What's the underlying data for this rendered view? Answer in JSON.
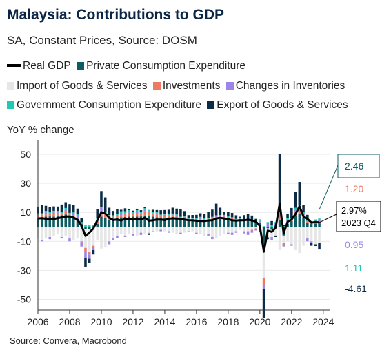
{
  "title": "Malaysia: Contributions to GDP",
  "subtitle": "SA, Constant Prices, Source: DOSM",
  "legend": [
    {
      "label": "Real GDP",
      "color": "#000000",
      "kind": "line"
    },
    {
      "label": "Private Consumption Expenditure",
      "color": "#0e5c63",
      "kind": "box"
    },
    {
      "label": "Import of Goods & Services",
      "color": "#e6e6e6",
      "kind": "box"
    },
    {
      "label": "Investments",
      "color": "#ef7a62",
      "kind": "box"
    },
    {
      "label": "Changes in Inventories",
      "color": "#9b86e8",
      "kind": "box"
    },
    {
      "label": "Government Consumption Expenditure",
      "color": "#1fc9b4",
      "kind": "box"
    },
    {
      "label": "Export of Goods & Services",
      "color": "#0c2c46",
      "kind": "box"
    }
  ],
  "ylabel": "YoY % change",
  "source": "Source: Convera, Macrobond",
  "callouts": {
    "pce": "2.46",
    "inv": "1.20",
    "gdp_value": "2.97%",
    "gdp_period": "2023 Q4",
    "inventories": "0.95",
    "gov": "1.11",
    "export": "-4.61"
  },
  "chart_data": {
    "type": "bar",
    "stacked": true,
    "ylim": [
      -55,
      60
    ],
    "xlim": [
      2006,
      2024.4
    ],
    "yticks": [
      -50,
      -30,
      -10,
      10,
      30,
      50
    ],
    "xticks": [
      "2006",
      "2008",
      "2010",
      "2012",
      "2014",
      "2016",
      "2018",
      "2020",
      "2022",
      "2024"
    ],
    "x_start": 2006.0,
    "x_step": 0.25,
    "gdp": [
      5.8,
      5.9,
      5.6,
      5.6,
      5.3,
      6.0,
      6.5,
      7.1,
      7.2,
      6.4,
      4.9,
      0.8,
      -6.2,
      -3.9,
      -1.0,
      4.6,
      10.1,
      9.2,
      6.1,
      4.8,
      5.0,
      4.4,
      5.6,
      5.2,
      5.0,
      5.4,
      5.0,
      6.3,
      4.2,
      4.5,
      5.0,
      5.0,
      4.7,
      5.5,
      5.9,
      5.7,
      5.6,
      5.0,
      4.6,
      4.5,
      4.2,
      4.1,
      4.0,
      4.4,
      4.6,
      5.8,
      6.2,
      5.8,
      5.4,
      4.5,
      4.3,
      4.6,
      4.5,
      4.9,
      4.4,
      3.6,
      0.7,
      -17.1,
      -2.6,
      -3.4,
      -0.5,
      16.1,
      -4.5,
      3.6,
      5.0,
      8.9,
      14.2,
      7.1,
      5.6,
      2.9,
      3.3,
      3.0
    ],
    "series": [
      {
        "name": "Private Consumption Expenditure",
        "values": [
          6.0,
          6.5,
          7.0,
          7.2,
          7.0,
          7.5,
          8.0,
          8.5,
          7.5,
          6.5,
          4.5,
          2.0,
          -1.5,
          -1.5,
          0.5,
          2.0,
          7.0,
          6.0,
          5.0,
          5.0,
          6.0,
          6.5,
          6.8,
          7.0,
          7.0,
          7.0,
          7.2,
          7.5,
          7.5,
          7.0,
          6.5,
          6.0,
          6.0,
          6.5,
          6.5,
          6.0,
          5.5,
          5.0,
          4.5,
          4.0,
          4.0,
          4.0,
          4.0,
          4.5,
          4.8,
          5.0,
          5.5,
          5.5,
          5.5,
          5.0,
          4.5,
          4.5,
          4.5,
          4.5,
          4.0,
          3.5,
          3.0,
          -15.0,
          -1.0,
          -2.0,
          1.0,
          5.0,
          -6.0,
          2.0,
          4.0,
          8.0,
          9.0,
          6.0,
          2.5,
          2.0,
          2.3,
          2.46
        ]
      },
      {
        "name": "Import of Goods & Services",
        "values": [
          -8.0,
          -9.0,
          -8.0,
          -7.0,
          -6.0,
          -5.0,
          -7.0,
          -6.0,
          -8.0,
          -9.0,
          -8.0,
          -10.0,
          -13.0,
          -16.0,
          -13.0,
          -9.0,
          -15.0,
          -14.0,
          -10.0,
          -8.0,
          -6.0,
          -5.0,
          -6.0,
          -5.0,
          -5.0,
          -6.0,
          -4.0,
          -5.0,
          -4.0,
          -3.0,
          -3.0,
          -2.0,
          -3.0,
          -3.0,
          -4.0,
          -5.0,
          -4.0,
          -4.0,
          -3.0,
          -3.0,
          -4.0,
          -5.0,
          -6.0,
          -5.0,
          -7.0,
          -8.0,
          -6.0,
          -5.0,
          -4.0,
          -4.0,
          -3.0,
          -2.0,
          -3.0,
          -3.0,
          -2.0,
          -1.0,
          -2.0,
          -20.0,
          -6.0,
          -5.0,
          -6.0,
          -16.0,
          -5.0,
          -10.0,
          -12.0,
          -16.0,
          -18.0,
          -13.0,
          -8.0,
          -10.0,
          -12.0,
          -11.0
        ]
      },
      {
        "name": "Investments",
        "values": [
          1.5,
          2.0,
          1.5,
          2.0,
          2.0,
          1.5,
          1.5,
          2.0,
          1.0,
          1.5,
          1.0,
          -0.5,
          -2.0,
          -1.5,
          -1.0,
          1.5,
          3.0,
          2.5,
          2.0,
          2.0,
          1.5,
          1.5,
          2.0,
          2.0,
          2.0,
          2.0,
          2.5,
          3.5,
          3.5,
          2.5,
          2.0,
          2.0,
          1.5,
          1.5,
          1.5,
          1.0,
          1.0,
          1.0,
          1.0,
          1.0,
          1.0,
          1.0,
          1.0,
          1.0,
          1.5,
          1.5,
          1.5,
          1.5,
          1.0,
          1.0,
          0.5,
          0.0,
          -0.5,
          -0.5,
          -0.5,
          -0.5,
          -1.0,
          -5.0,
          -1.0,
          -1.0,
          0.5,
          2.0,
          -1.0,
          0.5,
          1.0,
          2.0,
          3.0,
          2.0,
          1.0,
          1.0,
          1.2,
          1.2
        ]
      },
      {
        "name": "Changes in Inventories",
        "values": [
          1.0,
          -1.0,
          1.5,
          -1.5,
          1.0,
          1.0,
          -1.0,
          1.5,
          -2.0,
          1.0,
          2.0,
          -3.0,
          -5.0,
          -3.0,
          -2.0,
          2.0,
          3.0,
          1.0,
          -2.0,
          -1.0,
          -1.5,
          1.0,
          -1.0,
          1.0,
          -1.0,
          1.5,
          -1.5,
          1.0,
          -1.0,
          -0.5,
          1.0,
          -1.0,
          1.0,
          -1.0,
          0.5,
          1.0,
          -1.0,
          1.0,
          -0.5,
          0.5,
          -1.0,
          1.0,
          -0.5,
          -1.0,
          -1.5,
          1.0,
          0.5,
          0.5,
          -1.0,
          -1.5,
          -1.0,
          1.0,
          -1.0,
          -2.0,
          -1.5,
          -1.0,
          1.0,
          -3.0,
          2.0,
          -1.0,
          1.0,
          2.0,
          -1.5,
          2.5,
          -1.0,
          2.0,
          1.5,
          1.0,
          -2.0,
          -1.0,
          0.5,
          0.95
        ]
      },
      {
        "name": "Government Consumption Expenditure",
        "values": [
          0.8,
          0.9,
          1.0,
          1.0,
          1.1,
          1.0,
          0.9,
          1.0,
          1.2,
          1.0,
          1.1,
          1.3,
          1.5,
          1.2,
          1.0,
          0.8,
          0.7,
          0.8,
          1.2,
          1.0,
          1.5,
          1.8,
          2.0,
          1.5,
          1.2,
          1.0,
          0.8,
          0.9,
          0.7,
          0.8,
          0.6,
          0.5,
          0.6,
          0.8,
          0.7,
          0.6,
          0.5,
          0.4,
          0.6,
          0.7,
          0.8,
          0.9,
          0.8,
          0.7,
          0.6,
          0.5,
          0.7,
          0.8,
          0.7,
          0.6,
          0.5,
          0.5,
          0.6,
          0.7,
          0.8,
          1.0,
          1.2,
          0.5,
          1.3,
          1.0,
          0.8,
          1.5,
          0.5,
          1.0,
          1.0,
          1.2,
          1.5,
          1.0,
          0.8,
          1.0,
          1.1,
          1.11
        ]
      },
      {
        "name": "Export of Goods & Services",
        "values": [
          4.5,
          5.5,
          3.5,
          3.5,
          3.0,
          3.0,
          5.0,
          4.0,
          6.0,
          5.0,
          4.0,
          3.0,
          -6.0,
          -3.0,
          -3.0,
          6.0,
          11.0,
          10.0,
          5.0,
          3.0,
          3.0,
          1.0,
          2.0,
          1.0,
          1.0,
          1.0,
          1.0,
          1.0,
          -0.5,
          1.5,
          1.5,
          3.0,
          2.5,
          3.0,
          4.0,
          4.0,
          5.0,
          3.5,
          2.0,
          2.0,
          2.5,
          2.5,
          3.0,
          4.0,
          5.0,
          8.0,
          5.0,
          2.0,
          3.0,
          3.0,
          2.5,
          1.0,
          3.0,
          3.5,
          3.0,
          1.0,
          -0.5,
          -20.0,
          -0.5,
          3.0,
          -1.0,
          40.0,
          1.0,
          3.0,
          7.0,
          11.0,
          16.0,
          5.0,
          4.0,
          -2.0,
          -1.2,
          -4.61
        ]
      }
    ]
  }
}
